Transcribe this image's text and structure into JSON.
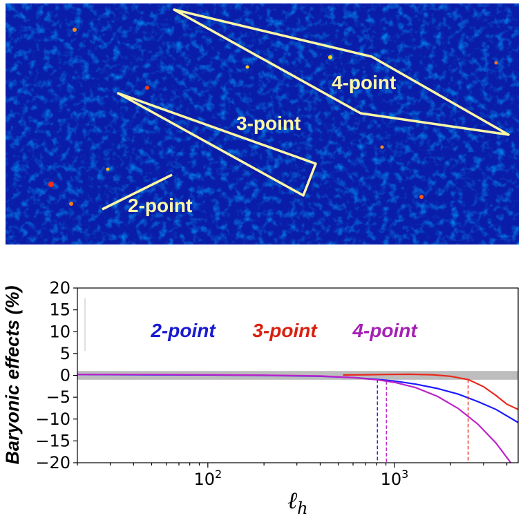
{
  "figure": {
    "annotation_labels": [
      "2-point",
      "3-point",
      "4-point"
    ]
  },
  "chart_data": {
    "type": "line",
    "xlabel_main": "ℓ",
    "xlabel_sub": "h",
    "ylabel": "Baryonic effects (%)",
    "xscale": "log",
    "xlim": [
      20,
      4600
    ],
    "ylim": [
      -20,
      20
    ],
    "yticks": [
      20,
      15,
      10,
      5,
      0,
      -5,
      -10,
      -15,
      -20
    ],
    "xticks": [
      {
        "value": 100,
        "base": "10",
        "exp": "2"
      },
      {
        "value": 1000,
        "base": "10",
        "exp": "3"
      }
    ],
    "band": {
      "y_from": -1,
      "y_to": 1,
      "color": "#bdbdbd"
    },
    "series": [
      {
        "name": "2-point",
        "color": "#1a1aff",
        "x": [
          20,
          50,
          100,
          200,
          400,
          600,
          800,
          1000,
          1300,
          1700,
          2200,
          2800,
          3500,
          4600
        ],
        "y": [
          0.2,
          0.15,
          0.1,
          0.0,
          -0.2,
          -0.5,
          -0.9,
          -1.3,
          -2.0,
          -3.0,
          -4.3,
          -6.0,
          -7.8,
          -10.8
        ],
        "marker_x": 810
      },
      {
        "name": "3-point",
        "color": "#e8281b",
        "x": [
          530,
          700,
          900,
          1200,
          1600,
          2000,
          2500,
          3000,
          3500,
          4000,
          4600
        ],
        "y": [
          0.1,
          0.15,
          0.2,
          0.25,
          0.15,
          -0.2,
          -1.0,
          -2.6,
          -4.6,
          -6.6,
          -7.8
        ],
        "marker_x": 2480
      },
      {
        "name": "4-point",
        "color": "#bd22c9",
        "x": [
          20,
          50,
          100,
          200,
          400,
          600,
          800,
          1000,
          1300,
          1700,
          2200,
          2800,
          3500,
          4200
        ],
        "y": [
          0.2,
          0.2,
          0.15,
          0.05,
          -0.15,
          -0.5,
          -1.0,
          -1.6,
          -2.8,
          -4.8,
          -7.6,
          -11.2,
          -15.5,
          -20.0
        ],
        "marker_x": 905
      }
    ],
    "legend": [
      {
        "label": "2-point",
        "color": "#1a1ad0"
      },
      {
        "label": "3-point",
        "color": "#d9200f"
      },
      {
        "label": "4-point",
        "color": "#a620b5"
      }
    ]
  }
}
